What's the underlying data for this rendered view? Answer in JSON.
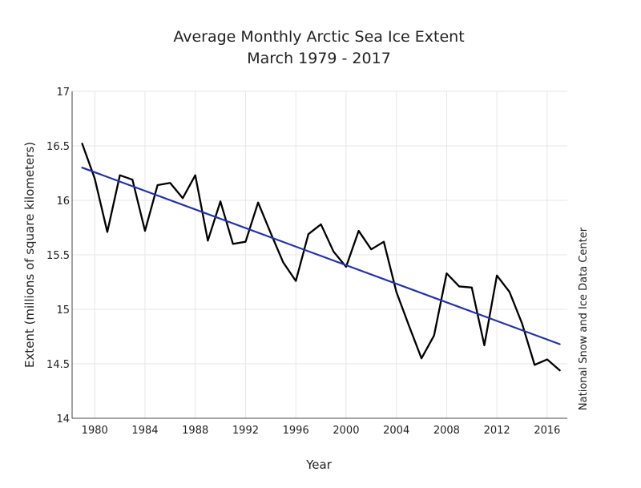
{
  "chart_data": {
    "type": "line",
    "title": "Average Monthly Arctic Sea Ice Extent",
    "subtitle": "March 1979 - 2017",
    "xlabel": "Year",
    "ylabel": "Extent (millions of square kilometers)",
    "credit": "National Snow and Ice Data Center",
    "xlim": [
      1978.2,
      2017.6
    ],
    "ylim": [
      14,
      17
    ],
    "x_ticks": [
      1980,
      1984,
      1988,
      1992,
      1996,
      2000,
      2004,
      2008,
      2012,
      2016
    ],
    "y_ticks": [
      14,
      14.5,
      15,
      15.5,
      16,
      16.5,
      17
    ],
    "y_tick_labels": [
      "14",
      "14.5",
      "15",
      "15.5",
      "16",
      "16.5",
      "17"
    ],
    "grid": true,
    "series": [
      {
        "color": "#000000",
        "x": [
          1979,
          1980,
          1981,
          1982,
          1983,
          1984,
          1985,
          1986,
          1987,
          1988,
          1989,
          1990,
          1991,
          1992,
          1993,
          1994,
          1995,
          1996,
          1997,
          1998,
          1999,
          2000,
          2001,
          2002,
          2003,
          2004,
          2005,
          2006,
          2007,
          2008,
          2009,
          2010,
          2011,
          2012,
          2013,
          2014,
          2015,
          2016,
          2017
        ],
        "y": [
          16.52,
          16.2,
          15.71,
          16.23,
          16.19,
          15.72,
          16.14,
          16.16,
          16.02,
          16.23,
          15.63,
          15.99,
          15.6,
          15.62,
          15.98,
          15.7,
          15.43,
          15.26,
          15.69,
          15.78,
          15.53,
          15.39,
          15.72,
          15.55,
          15.62,
          15.16,
          14.85,
          14.55,
          14.76,
          15.33,
          15.21,
          15.2,
          14.67,
          15.31,
          15.16,
          14.87,
          14.49,
          14.54,
          14.44
        ]
      },
      {
        "color": "#2331a8",
        "x": [
          1979,
          2017
        ],
        "y": [
          16.3,
          14.68
        ]
      }
    ]
  }
}
